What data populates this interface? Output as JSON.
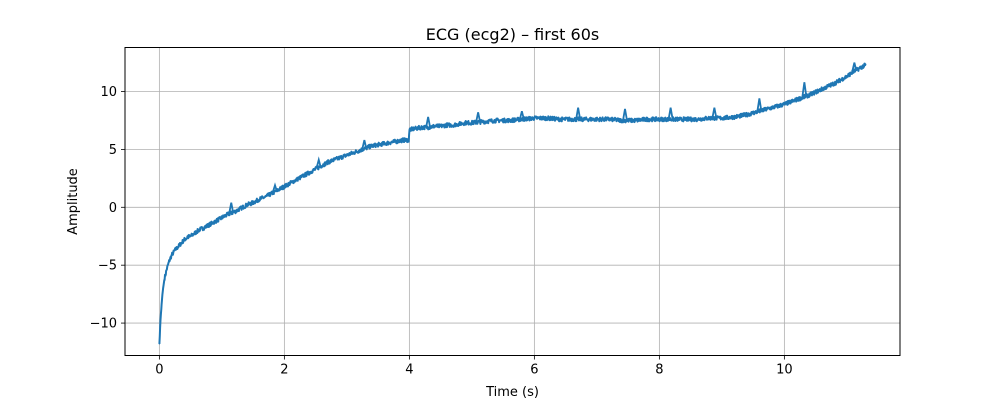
{
  "chart_data": {
    "type": "line",
    "title": "ECG (ecg2) – first 60s",
    "xlabel": "Time (s)",
    "ylabel": "Amplitude",
    "xlim": [
      -0.55,
      11.85
    ],
    "ylim": [
      -12.8,
      13.8
    ],
    "xticks": [
      0,
      2,
      4,
      6,
      8,
      10
    ],
    "yticks": [
      -10,
      -5,
      0,
      5,
      10
    ],
    "xtick_labels": [
      "0",
      "2",
      "4",
      "6",
      "8",
      "10"
    ],
    "ytick_labels": [
      "−10",
      "−5",
      "0",
      "5",
      "10"
    ],
    "grid": true,
    "line_color": "#1f77b4",
    "series": [
      {
        "x": [
          0,
          0.02,
          0.05,
          0.08,
          0.12,
          0.16,
          0.2,
          0.25,
          0.3,
          0.35,
          0.4,
          0.45,
          0.5,
          0.55,
          0.6,
          0.65,
          0.7,
          0.8,
          0.9,
          1.0,
          1.1,
          1.2,
          1.3,
          1.4,
          1.5,
          1.6,
          1.7,
          1.8,
          1.9,
          2.0,
          2.1,
          2.2,
          2.3,
          2.4,
          2.5,
          2.6,
          2.7,
          2.8,
          2.9,
          3.0,
          3.1,
          3.2,
          3.3,
          3.4,
          3.5,
          3.6,
          3.7,
          3.8,
          3.9,
          3.99,
          4.0,
          4.1,
          4.2,
          4.3,
          4.4,
          4.5,
          4.6,
          4.7,
          4.8,
          4.9,
          5.0,
          5.2,
          5.4,
          5.6,
          5.8,
          6.0,
          6.2,
          6.4,
          6.6,
          6.8,
          7.0,
          7.2,
          7.4,
          7.6,
          7.8,
          8.0,
          8.2,
          8.4,
          8.6,
          8.8,
          9.0,
          9.2,
          9.4,
          9.6,
          9.8,
          10.0,
          10.2,
          10.4,
          10.6,
          10.8,
          11.0,
          11.1,
          11.2,
          11.3
        ],
        "y": [
          -11.8,
          -9.5,
          -7.4,
          -6.2,
          -5.3,
          -4.6,
          -4.1,
          -3.7,
          -3.4,
          -3.1,
          -2.8,
          -2.6,
          -2.5,
          -2.3,
          -2.1,
          -1.9,
          -1.8,
          -1.5,
          -1.2,
          -0.9,
          -0.6,
          -0.4,
          -0.1,
          0.2,
          0.4,
          0.7,
          0.9,
          1.2,
          1.5,
          1.8,
          2.1,
          2.4,
          2.7,
          3.0,
          3.3,
          3.6,
          3.9,
          4.1,
          4.3,
          4.5,
          4.7,
          4.9,
          5.1,
          5.3,
          5.4,
          5.5,
          5.6,
          5.7,
          5.8,
          5.8,
          6.7,
          6.8,
          6.9,
          6.9,
          7.0,
          7.0,
          7.1,
          7.1,
          7.2,
          7.3,
          7.3,
          7.4,
          7.5,
          7.5,
          7.6,
          7.7,
          7.7,
          7.6,
          7.6,
          7.6,
          7.6,
          7.6,
          7.5,
          7.5,
          7.6,
          7.6,
          7.6,
          7.6,
          7.6,
          7.7,
          7.7,
          7.8,
          8.0,
          8.3,
          8.6,
          8.9,
          9.3,
          9.7,
          10.2,
          10.7,
          11.3,
          11.7,
          12.0,
          12.3
        ]
      }
    ],
    "peaks": [
      {
        "x": 0.47,
        "y": -2.4
      },
      {
        "x": 1.15,
        "y": 0.4
      },
      {
        "x": 1.85,
        "y": 1.9
      },
      {
        "x": 2.55,
        "y": 4.1
      },
      {
        "x": 3.28,
        "y": 5.8
      },
      {
        "x": 4.3,
        "y": 7.8
      },
      {
        "x": 5.1,
        "y": 8.2
      },
      {
        "x": 5.8,
        "y": 8.3
      },
      {
        "x": 6.7,
        "y": 8.6
      },
      {
        "x": 7.45,
        "y": 8.5
      },
      {
        "x": 8.18,
        "y": 8.6
      },
      {
        "x": 8.88,
        "y": 8.6
      },
      {
        "x": 9.6,
        "y": 9.4
      },
      {
        "x": 10.32,
        "y": 10.8
      },
      {
        "x": 11.12,
        "y": 12.5
      }
    ]
  }
}
